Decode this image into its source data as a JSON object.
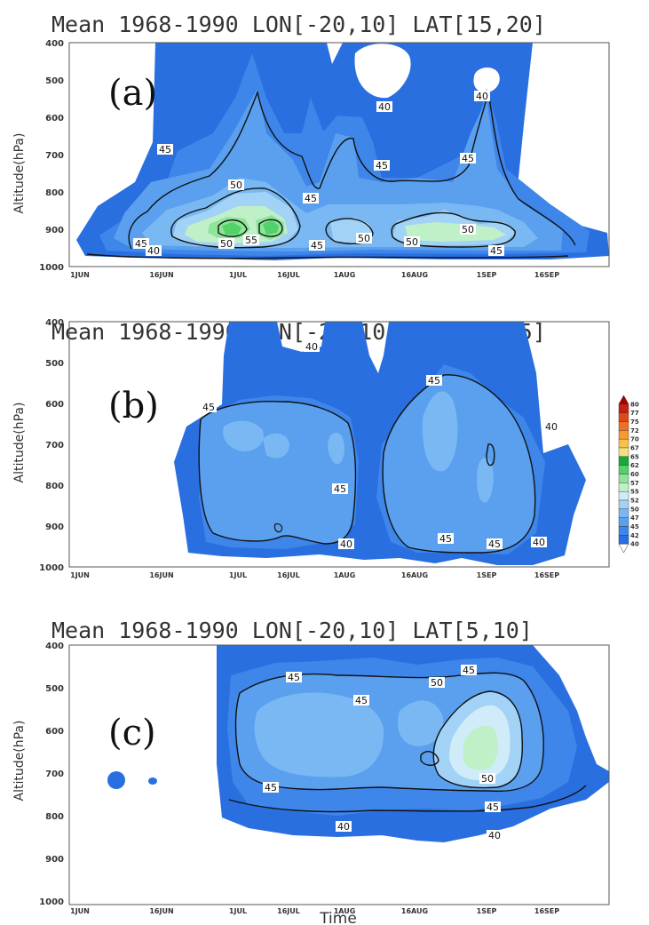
{
  "chart_data": {
    "type": "heatmap",
    "xlabel": "Time",
    "colorbar": {
      "levels": [
        40,
        42,
        45,
        47,
        50,
        52,
        55,
        57,
        60,
        62,
        65,
        67,
        70,
        72,
        75,
        77,
        80
      ],
      "colors": [
        "#2a6fe0",
        "#3f86ea",
        "#5aa0ef",
        "#79b8f2",
        "#a2d3f6",
        "#d0ecf8",
        "#bff0c8",
        "#8ee59a",
        "#52d268",
        "#1aa83a",
        "#f6e27a",
        "#f8c24a",
        "#f59a30",
        "#f07020",
        "#e04818",
        "#c82010",
        "#a80000"
      ]
    },
    "panels": [
      {
        "label": "(a)",
        "title": "Mean 1968-1990 LON[-20,10] LAT[15,20]",
        "ylabel": "Altitude(hPa)",
        "yticks": [
          "400",
          "500",
          "600",
          "700",
          "800",
          "900",
          "1000"
        ],
        "xticks": [
          "1JUN",
          "16JUN",
          "1JUL",
          "16JUL",
          "1AUG",
          "16AUG",
          "1SEP",
          "16SEP"
        ],
        "contour_labels": [
          "40",
          "40",
          "45",
          "45",
          "45",
          "45",
          "45",
          "45",
          "45",
          "50",
          "50",
          "50",
          "50",
          "50",
          "55",
          "40"
        ]
      },
      {
        "label": "(b)",
        "title": "Mean 1968-1990 LON[-20,10] LAT[10,15]",
        "ylabel": "Altitude(hPa)",
        "yticks": [
          "400",
          "500",
          "600",
          "700",
          "800",
          "900",
          "1000"
        ],
        "xticks": [
          "1JUN",
          "16JUN",
          "1JUL",
          "16JUL",
          "1AUG",
          "16AUG",
          "1SEP",
          "16SEP"
        ],
        "contour_labels": [
          "40",
          "45",
          "45",
          "40",
          "45",
          "40",
          "45",
          "45",
          "40"
        ]
      },
      {
        "label": "(c)",
        "title": "Mean 1968-1990 LON[-20,10] LAT[5,10]",
        "ylabel": "Altitude(hPa)",
        "yticks": [
          "400",
          "500",
          "600",
          "700",
          "800",
          "900",
          "1000"
        ],
        "xticks": [
          "1JUN",
          "16JUN",
          "1JUL",
          "16JUL",
          "1AUG",
          "16AUG",
          "1SEP",
          "16SEP"
        ],
        "contour_labels": [
          "45",
          "45",
          "50",
          "45",
          "45",
          "50",
          "45",
          "40",
          "40"
        ]
      }
    ]
  }
}
